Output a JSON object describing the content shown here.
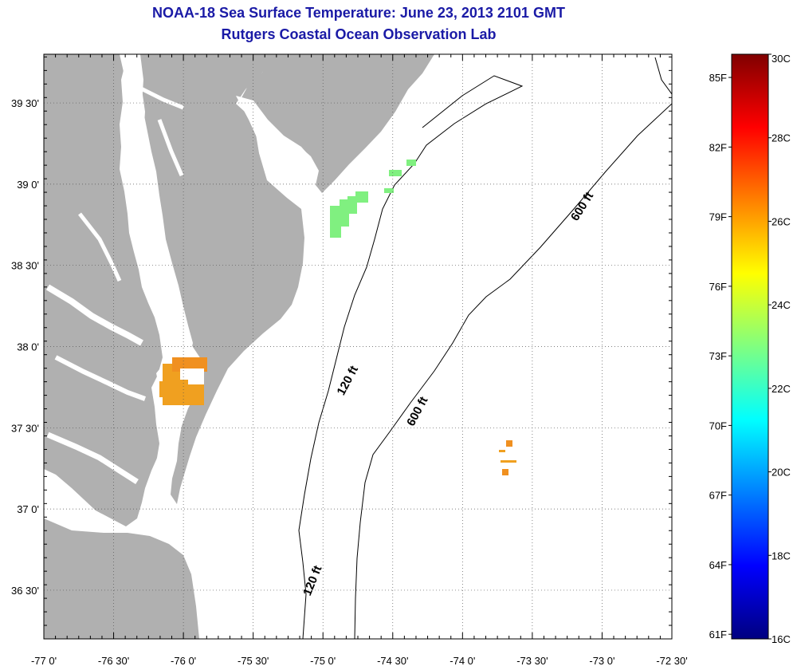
{
  "header": {
    "title": "NOAA-18 Sea Surface Temperature:  June 23, 2013 2101 GMT",
    "subtitle": "Rutgers Coastal Ocean Observation Lab"
  },
  "map": {
    "lon_range": [
      -77.0,
      -72.5
    ],
    "lat_range": [
      36.2,
      39.8
    ],
    "x_ticks": [
      {
        "value": -77.0,
        "label": "-77 0'"
      },
      {
        "value": -76.5,
        "label": "-76 30'"
      },
      {
        "value": -76.0,
        "label": "-76 0'"
      },
      {
        "value": -75.5,
        "label": "-75 30'"
      },
      {
        "value": -75.0,
        "label": "-75 0'"
      },
      {
        "value": -74.5,
        "label": "-74 30'"
      },
      {
        "value": -74.0,
        "label": "-74 0'"
      },
      {
        "value": -73.5,
        "label": "-73 30'"
      },
      {
        "value": -73.0,
        "label": "-73 0'"
      },
      {
        "value": -72.5,
        "label": "-72 30'"
      }
    ],
    "y_ticks": [
      {
        "value": 39.5,
        "label": "39 30'"
      },
      {
        "value": 39.0,
        "label": "39 0'"
      },
      {
        "value": 38.5,
        "label": "38 30'"
      },
      {
        "value": 38.0,
        "label": "38 0'"
      },
      {
        "value": 37.5,
        "label": "37 30'"
      },
      {
        "value": 37.0,
        "label": "37 0'"
      },
      {
        "value": 36.5,
        "label": "36 30'"
      }
    ],
    "grid": true,
    "contour_labels": [
      {
        "text": "120 ft",
        "lon": -74.8,
        "lat": 37.78,
        "angle": -62
      },
      {
        "text": "600 ft",
        "lon": -74.3,
        "lat": 37.59,
        "angle": -62
      },
      {
        "text": "600 ft",
        "lon": -73.12,
        "lat": 38.85,
        "angle": -58
      },
      {
        "text": "120 ft",
        "lon": -75.05,
        "lat": 36.55,
        "angle": -68
      }
    ],
    "colors": {
      "land": "#b0b0b0",
      "water": "#ffffff"
    }
  },
  "colorbar": {
    "celsius_range": [
      16,
      30
    ],
    "celsius_labels": [
      "30C",
      "28C",
      "26C",
      "24C",
      "22C",
      "20C",
      "18C",
      "16C"
    ],
    "fahrenheit_labels": [
      "85F",
      "82F",
      "79F",
      "76F",
      "73F",
      "70F",
      "67F",
      "64F",
      "61F"
    ],
    "colormap": [
      "#000080",
      "#0000ff",
      "#0080ff",
      "#00ffff",
      "#80ff80",
      "#ffff00",
      "#ff8000",
      "#ff0000",
      "#800000"
    ]
  }
}
